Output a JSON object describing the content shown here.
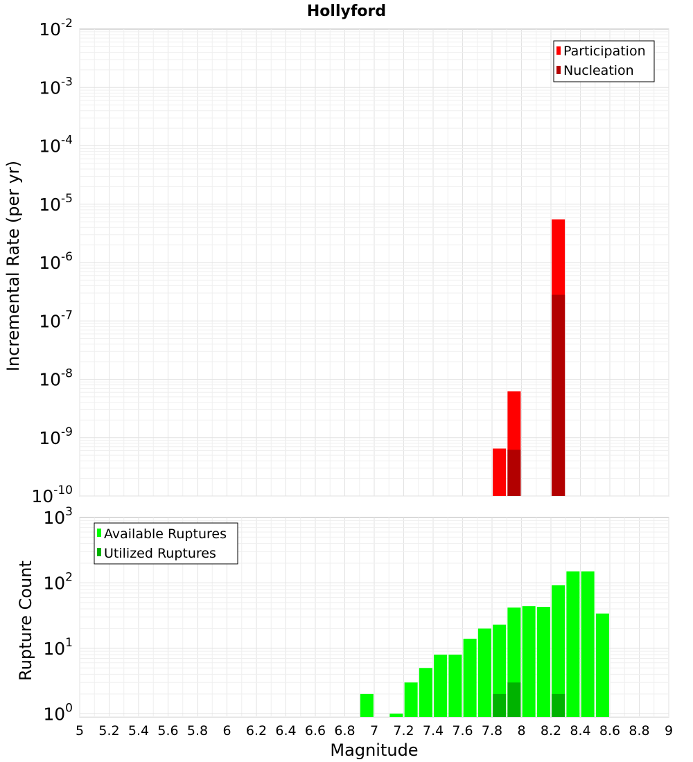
{
  "chart_data": [
    {
      "id": "top",
      "type": "bar",
      "title": "Hollyford",
      "ylabel": "Incremental Rate (per yr)",
      "xlim": [
        5,
        9
      ],
      "ylim_exp": [
        -10,
        -2
      ],
      "yscale": "log",
      "grid": true,
      "legend_position": "top-right",
      "ytick_exponents": [
        -2,
        -3,
        -4,
        -5,
        -6,
        -7,
        -8,
        -9,
        -10
      ],
      "series": [
        {
          "name": "Participation",
          "color": "#ff0000",
          "points": [
            {
              "x": 7.85,
              "y": 6.5e-10
            },
            {
              "x": 7.95,
              "y": 6.2e-09
            },
            {
              "x": 8.25,
              "y": 5.5e-06
            }
          ]
        },
        {
          "name": "Nucleation",
          "color": "#b20000",
          "points": [
            {
              "x": 7.95,
              "y": 6.2e-10
            },
            {
              "x": 8.25,
              "y": 2.8e-07
            }
          ]
        }
      ]
    },
    {
      "id": "bottom",
      "type": "bar",
      "xlabel": "Magnitude",
      "ylabel": "Rupture Count",
      "xlim": [
        5,
        9
      ],
      "ylim_exp": [
        -0.05,
        3
      ],
      "yscale": "log",
      "grid": true,
      "legend_position": "top-left",
      "xticks": [
        "5",
        "5.2",
        "5.4",
        "5.6",
        "5.8",
        "6",
        "6.2",
        "6.4",
        "6.6",
        "6.8",
        "7",
        "7.2",
        "7.4",
        "7.6",
        "7.8",
        "8",
        "8.2",
        "8.4",
        "8.6",
        "8.8",
        "9"
      ],
      "ytick_exponents": [
        3,
        2,
        1,
        0
      ],
      "series": [
        {
          "name": "Available Ruptures",
          "color": "#00ff00",
          "points": [
            {
              "x": 6.95,
              "y": 2
            },
            {
              "x": 7.15,
              "y": 1
            },
            {
              "x": 7.25,
              "y": 3
            },
            {
              "x": 7.35,
              "y": 5
            },
            {
              "x": 7.45,
              "y": 8
            },
            {
              "x": 7.55,
              "y": 8
            },
            {
              "x": 7.65,
              "y": 14
            },
            {
              "x": 7.75,
              "y": 20
            },
            {
              "x": 7.85,
              "y": 23
            },
            {
              "x": 7.95,
              "y": 42
            },
            {
              "x": 8.05,
              "y": 44
            },
            {
              "x": 8.15,
              "y": 43
            },
            {
              "x": 8.25,
              "y": 92
            },
            {
              "x": 8.35,
              "y": 150
            },
            {
              "x": 8.45,
              "y": 150
            },
            {
              "x": 8.55,
              "y": 34
            }
          ]
        },
        {
          "name": "Utilized Ruptures",
          "color": "#00b200",
          "points": [
            {
              "x": 7.85,
              "y": 2
            },
            {
              "x": 7.95,
              "y": 3
            },
            {
              "x": 8.25,
              "y": 2
            }
          ]
        }
      ]
    }
  ]
}
